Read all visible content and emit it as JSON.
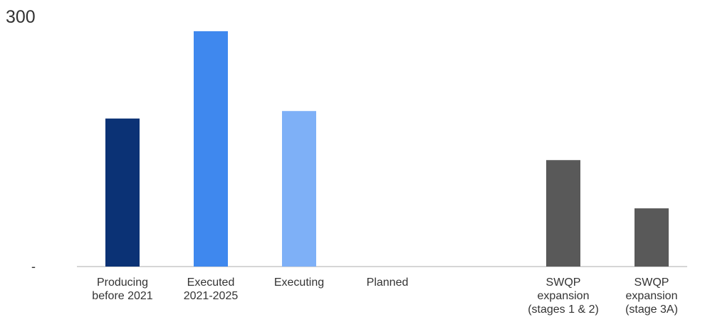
{
  "chart_data": {
    "type": "bar",
    "title": "",
    "xlabel": "",
    "ylabel": "",
    "ylim": [
      0,
      300
    ],
    "y_tick_labels": [
      {
        "value": 300,
        "label": "300"
      },
      {
        "value": 0,
        "label": "-"
      }
    ],
    "grid": false,
    "legend": "none",
    "categories": [
      {
        "lines": [
          "Producing",
          "before 2021"
        ],
        "value": 178,
        "color": "#0b3275"
      },
      {
        "lines": [
          "Executed",
          "2021-2025"
        ],
        "value": 283,
        "color": "#3f88ee"
      },
      {
        "lines": [
          "Executing"
        ],
        "value": 187,
        "color": "#7eb0f7"
      },
      {
        "lines": [
          "Planned"
        ],
        "value": 0,
        "color": "#7eb0f7"
      },
      {
        "lines": [
          "SWQP",
          "expansion",
          "(stages 1 & 2)"
        ],
        "value": 128,
        "color": "#595959"
      },
      {
        "lines": [
          "SWQP",
          "expansion",
          "(stage 3A)"
        ],
        "value": 70,
        "color": "#595959"
      }
    ]
  }
}
